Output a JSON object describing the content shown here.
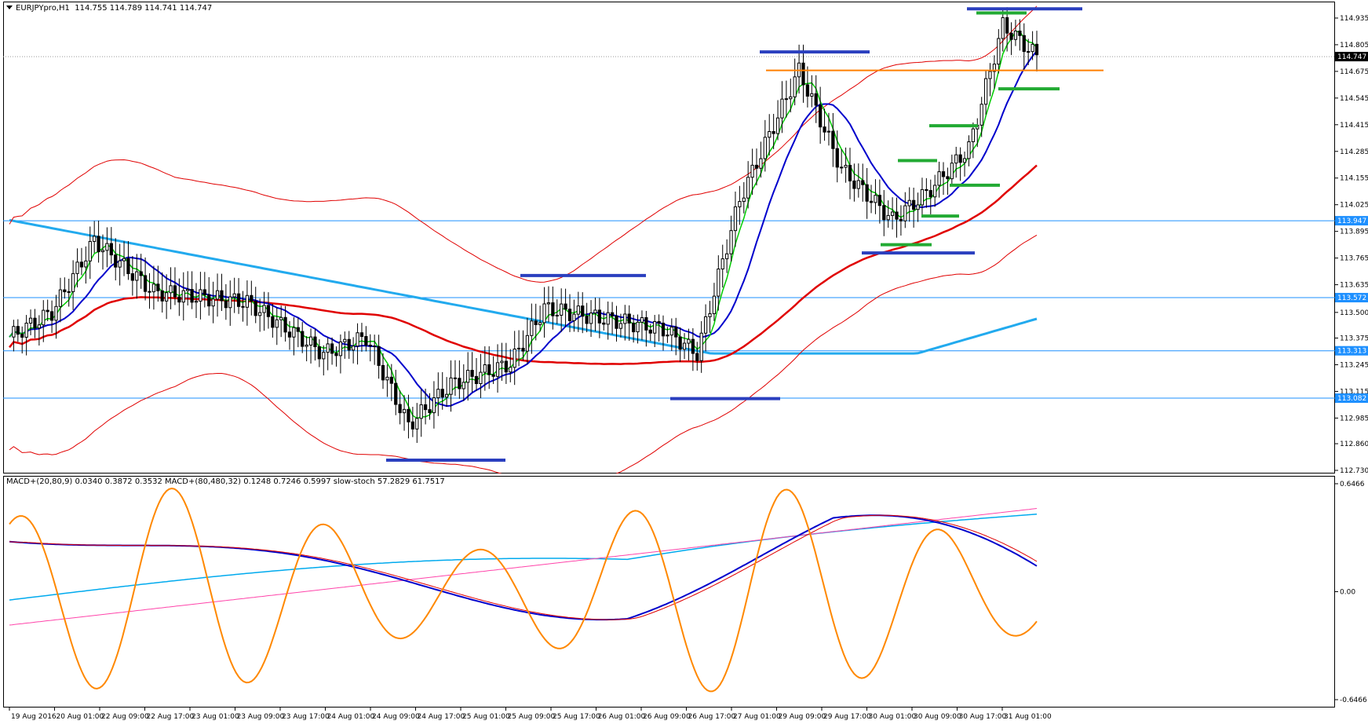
{
  "main_header": {
    "symbol_label": "EURJPYpro,H1",
    "ohlc": "114.755 114.789 114.741 114.747"
  },
  "sub_header": {
    "indicators": "MACD+(20,80,9) 0.0340 0.3872 0.3532   MACD+(80,480,32) 0.1248 0.7246 0.5997   slow-stoch 57.2829 61.7517"
  },
  "price_scale": [
    "114.935",
    "114.805",
    "114.675",
    "114.545",
    "114.415",
    "114.285",
    "114.155",
    "114.025",
    "113.895",
    "113.765",
    "113.635",
    "113.500",
    "113.375",
    "113.245",
    "113.115",
    "112.985",
    "112.860",
    "112.730"
  ],
  "level_labels": [
    {
      "value": "114.747",
      "color": "#000000"
    },
    {
      "value": "113.947",
      "color": "#1e90ff"
    },
    {
      "value": "113.572",
      "color": "#1e90ff"
    },
    {
      "value": "113.313",
      "color": "#1e90ff"
    },
    {
      "value": "113.082",
      "color": "#1e90ff"
    }
  ],
  "osc_scale": [
    "0.6466",
    "0.00",
    "-0.6466"
  ],
  "time_axis": [
    "19 Aug 2016",
    "20 Aug 01:00",
    "22 Aug 09:00",
    "22 Aug 17:00",
    "23 Aug 01:00",
    "23 Aug 09:00",
    "23 Aug 17:00",
    "24 Aug 01:00",
    "24 Aug 09:00",
    "24 Aug 17:00",
    "25 Aug 01:00",
    "25 Aug 09:00",
    "25 Aug 17:00",
    "26 Aug 01:00",
    "26 Aug 09:00",
    "26 Aug 17:00",
    "27 Aug 01:00",
    "29 Aug 09:00",
    "29 Aug 17:00",
    "30 Aug 01:00",
    "30 Aug 09:00",
    "30 Aug 17:00",
    "31 Aug 01:00"
  ],
  "colors": {
    "up_candle": "#ffffff",
    "down_candle": "#000000",
    "ma_fast": "#00cc00",
    "ma_mid": "#0000cc",
    "ma_slow": "#e00000",
    "ma_long": "#22aaee",
    "bands": "#e00000",
    "levels": "#1e90ff",
    "resistance": "#ff7f00",
    "annotation_blue": "#2a3fbf",
    "annotation_green": "#22aa33",
    "stoch": "#ff8800",
    "macd_fast": "#0000cc",
    "macd_slow": "#00aaee",
    "signal_pink": "#ff44aa"
  },
  "chart_data": {
    "type": "candlestick",
    "symbol": "EURJPYpro",
    "timeframe": "H1",
    "ylim": [
      112.73,
      115.0
    ],
    "last_price": 114.747,
    "horizontal_levels": [
      113.947,
      113.572,
      113.313,
      113.082
    ],
    "resistance_level": 114.68,
    "osc_ylim": [
      -0.6466,
      0.6466
    ]
  }
}
